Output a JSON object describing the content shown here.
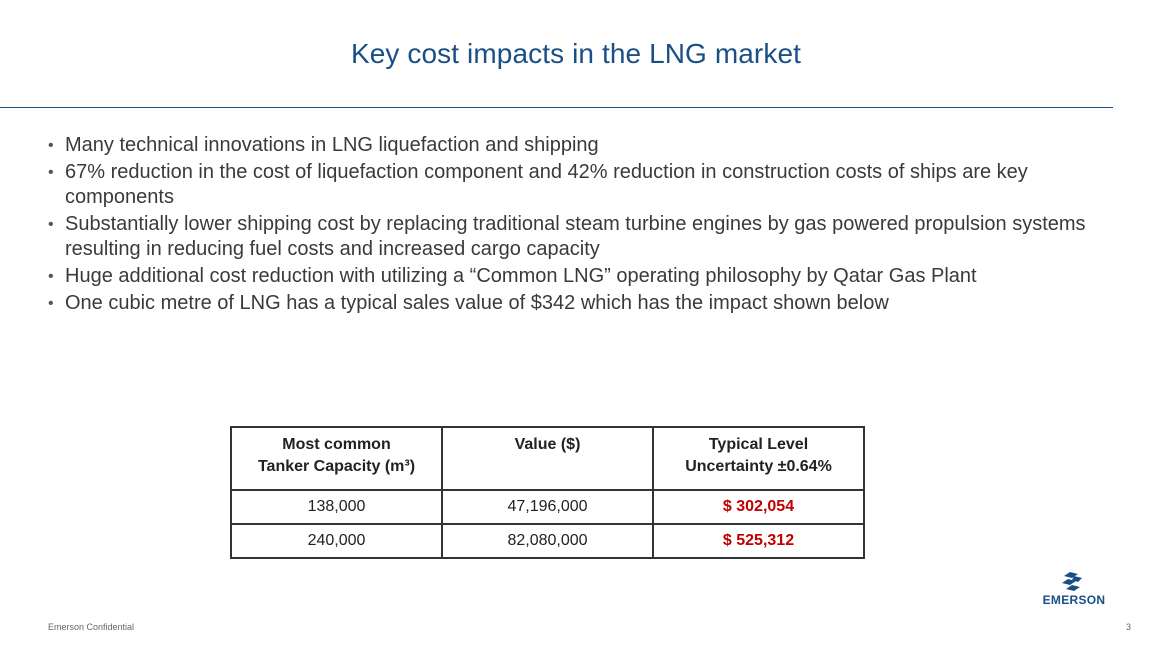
{
  "slide": {
    "title": "Key cost impacts in the LNG market",
    "bullets": [
      "Many technical innovations in LNG liquefaction and shipping",
      "67% reduction in the cost of  liquefaction component  and 42% reduction in construction costs of ships are key components",
      "Substantially lower shipping cost  by replacing traditional steam turbine engines by gas powered propulsion systems resulting in  reducing fuel costs and increased cargo capacity",
      "Huge additional cost reduction with utilizing a “Common LNG” operating philosophy by Qatar Gas Plant",
      "One cubic metre of LNG has a typical sales value of $342 which has the impact shown below"
    ]
  },
  "table": {
    "headers": [
      [
        "Most common",
        "Tanker Capacity (m³)"
      ],
      [
        "Value ($)",
        ""
      ],
      [
        "Typical Level",
        "Uncertainty ±0.64%"
      ]
    ],
    "rows": [
      [
        "138,000",
        "47,196,000",
        "$ 302,054"
      ],
      [
        "240,000",
        "82,080,000",
        "$ 525,312"
      ]
    ]
  },
  "footer": {
    "confidential": "Emerson Confidential",
    "page_number": "3",
    "logo_text": "EMERSON"
  },
  "colors": {
    "title": "#1a4f86",
    "highlight": "#c00000"
  }
}
